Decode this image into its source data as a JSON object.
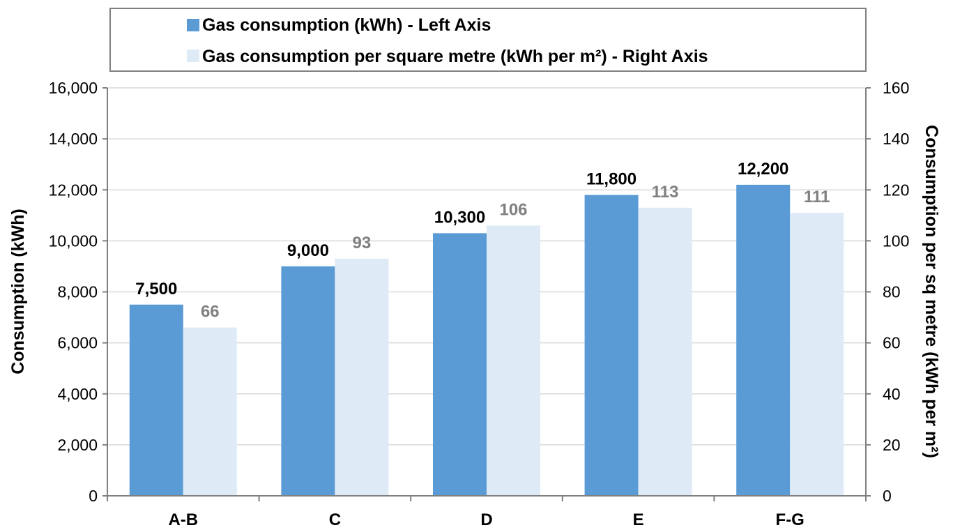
{
  "chart_data": {
    "type": "bar",
    "categories": [
      "A-B",
      "C",
      "D",
      "E",
      "F-G"
    ],
    "series": [
      {
        "name": "Gas consumption (kWh) - Left Axis",
        "axis": "left",
        "color": "#5b9bd5",
        "values": [
          7500,
          9000,
          10300,
          11800,
          12200
        ],
        "labels": [
          "7,500",
          "9,000",
          "10,300",
          "11,800",
          "12,200"
        ]
      },
      {
        "name": "Gas consumption per square metre (kWh per m²) - Right Axis",
        "axis": "right",
        "color": "#deebf7",
        "values": [
          66,
          93,
          106,
          113,
          111
        ],
        "labels": [
          "66",
          "93",
          "106",
          "113",
          "111"
        ]
      }
    ],
    "left_axis": {
      "label": "Consumption (kWh)",
      "ylim": [
        0,
        16000
      ],
      "ticks": [
        "0",
        "2,000",
        "4,000",
        "6,000",
        "8,000",
        "10,000",
        "12,000",
        "14,000",
        "16,000"
      ]
    },
    "right_axis": {
      "label": "Consumption per sq metre (kWh per m²)",
      "ylim": [
        0,
        160
      ],
      "ticks": [
        "0",
        "20",
        "40",
        "60",
        "80",
        "100",
        "120",
        "140",
        "160"
      ]
    },
    "grid": true,
    "legend_position": "top",
    "primary_label_color": "#000000",
    "secondary_label_color": "#808080",
    "grid_color": "#d9d9d9",
    "axis_color": "#808080"
  }
}
